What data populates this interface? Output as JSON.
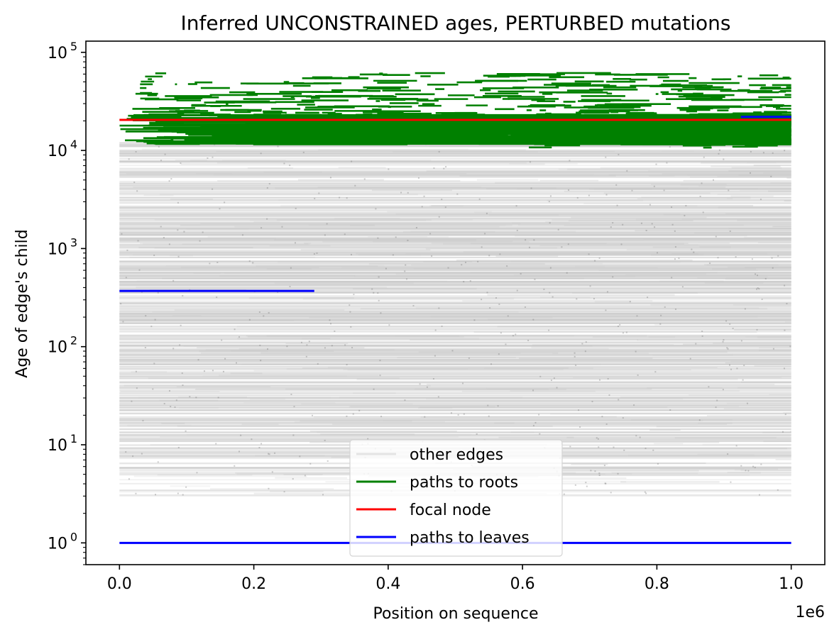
{
  "chart_data": {
    "type": "line",
    "title": "Inferred UNCONSTRAINED ages, PERTURBED mutations",
    "xlabel": "Position on sequence",
    "ylabel": "Age of edge's child",
    "x_offset_label": "1e6",
    "xlim": [
      -50000,
      1050000
    ],
    "ylim": [
      0.6,
      130000
    ],
    "y_scale": "log",
    "x_ticks": [
      0,
      200000,
      400000,
      600000,
      800000,
      1000000
    ],
    "x_tick_labels": [
      "0.0",
      "0.2",
      "0.4",
      "0.6",
      "0.8",
      "1.0"
    ],
    "y_ticks": [
      1,
      10,
      100,
      1000,
      10000,
      100000
    ],
    "y_tick_labels": [
      {
        "base": "10",
        "exp": "0"
      },
      {
        "base": "10",
        "exp": "1"
      },
      {
        "base": "10",
        "exp": "2"
      },
      {
        "base": "10",
        "exp": "3"
      },
      {
        "base": "10",
        "exp": "4"
      },
      {
        "base": "10",
        "exp": "5"
      }
    ],
    "grid": false,
    "legend_position": "lower-center",
    "series": [
      {
        "name": "other edges",
        "color": "#c8c8c8",
        "edge_count": 900,
        "age_range": [
          3,
          12000
        ],
        "x_range": [
          0,
          1000000
        ]
      },
      {
        "name": "paths to roots",
        "color": "#008000",
        "edge_count": 700,
        "age_range": [
          10500,
          70000
        ],
        "x_range": [
          0,
          1000000
        ]
      },
      {
        "name": "focal node",
        "color": "#ff0000",
        "segments": [
          {
            "x0": 0,
            "x1": 1000000,
            "y": 20500
          }
        ]
      },
      {
        "name": "paths to leaves",
        "color": "#0000ff",
        "segments": [
          {
            "x0": 0,
            "x1": 1000000,
            "y": 1
          },
          {
            "x0": 0,
            "x1": 290000,
            "y": 370
          },
          {
            "x0": 925000,
            "x1": 1000000,
            "y": 22000
          }
        ]
      }
    ]
  }
}
